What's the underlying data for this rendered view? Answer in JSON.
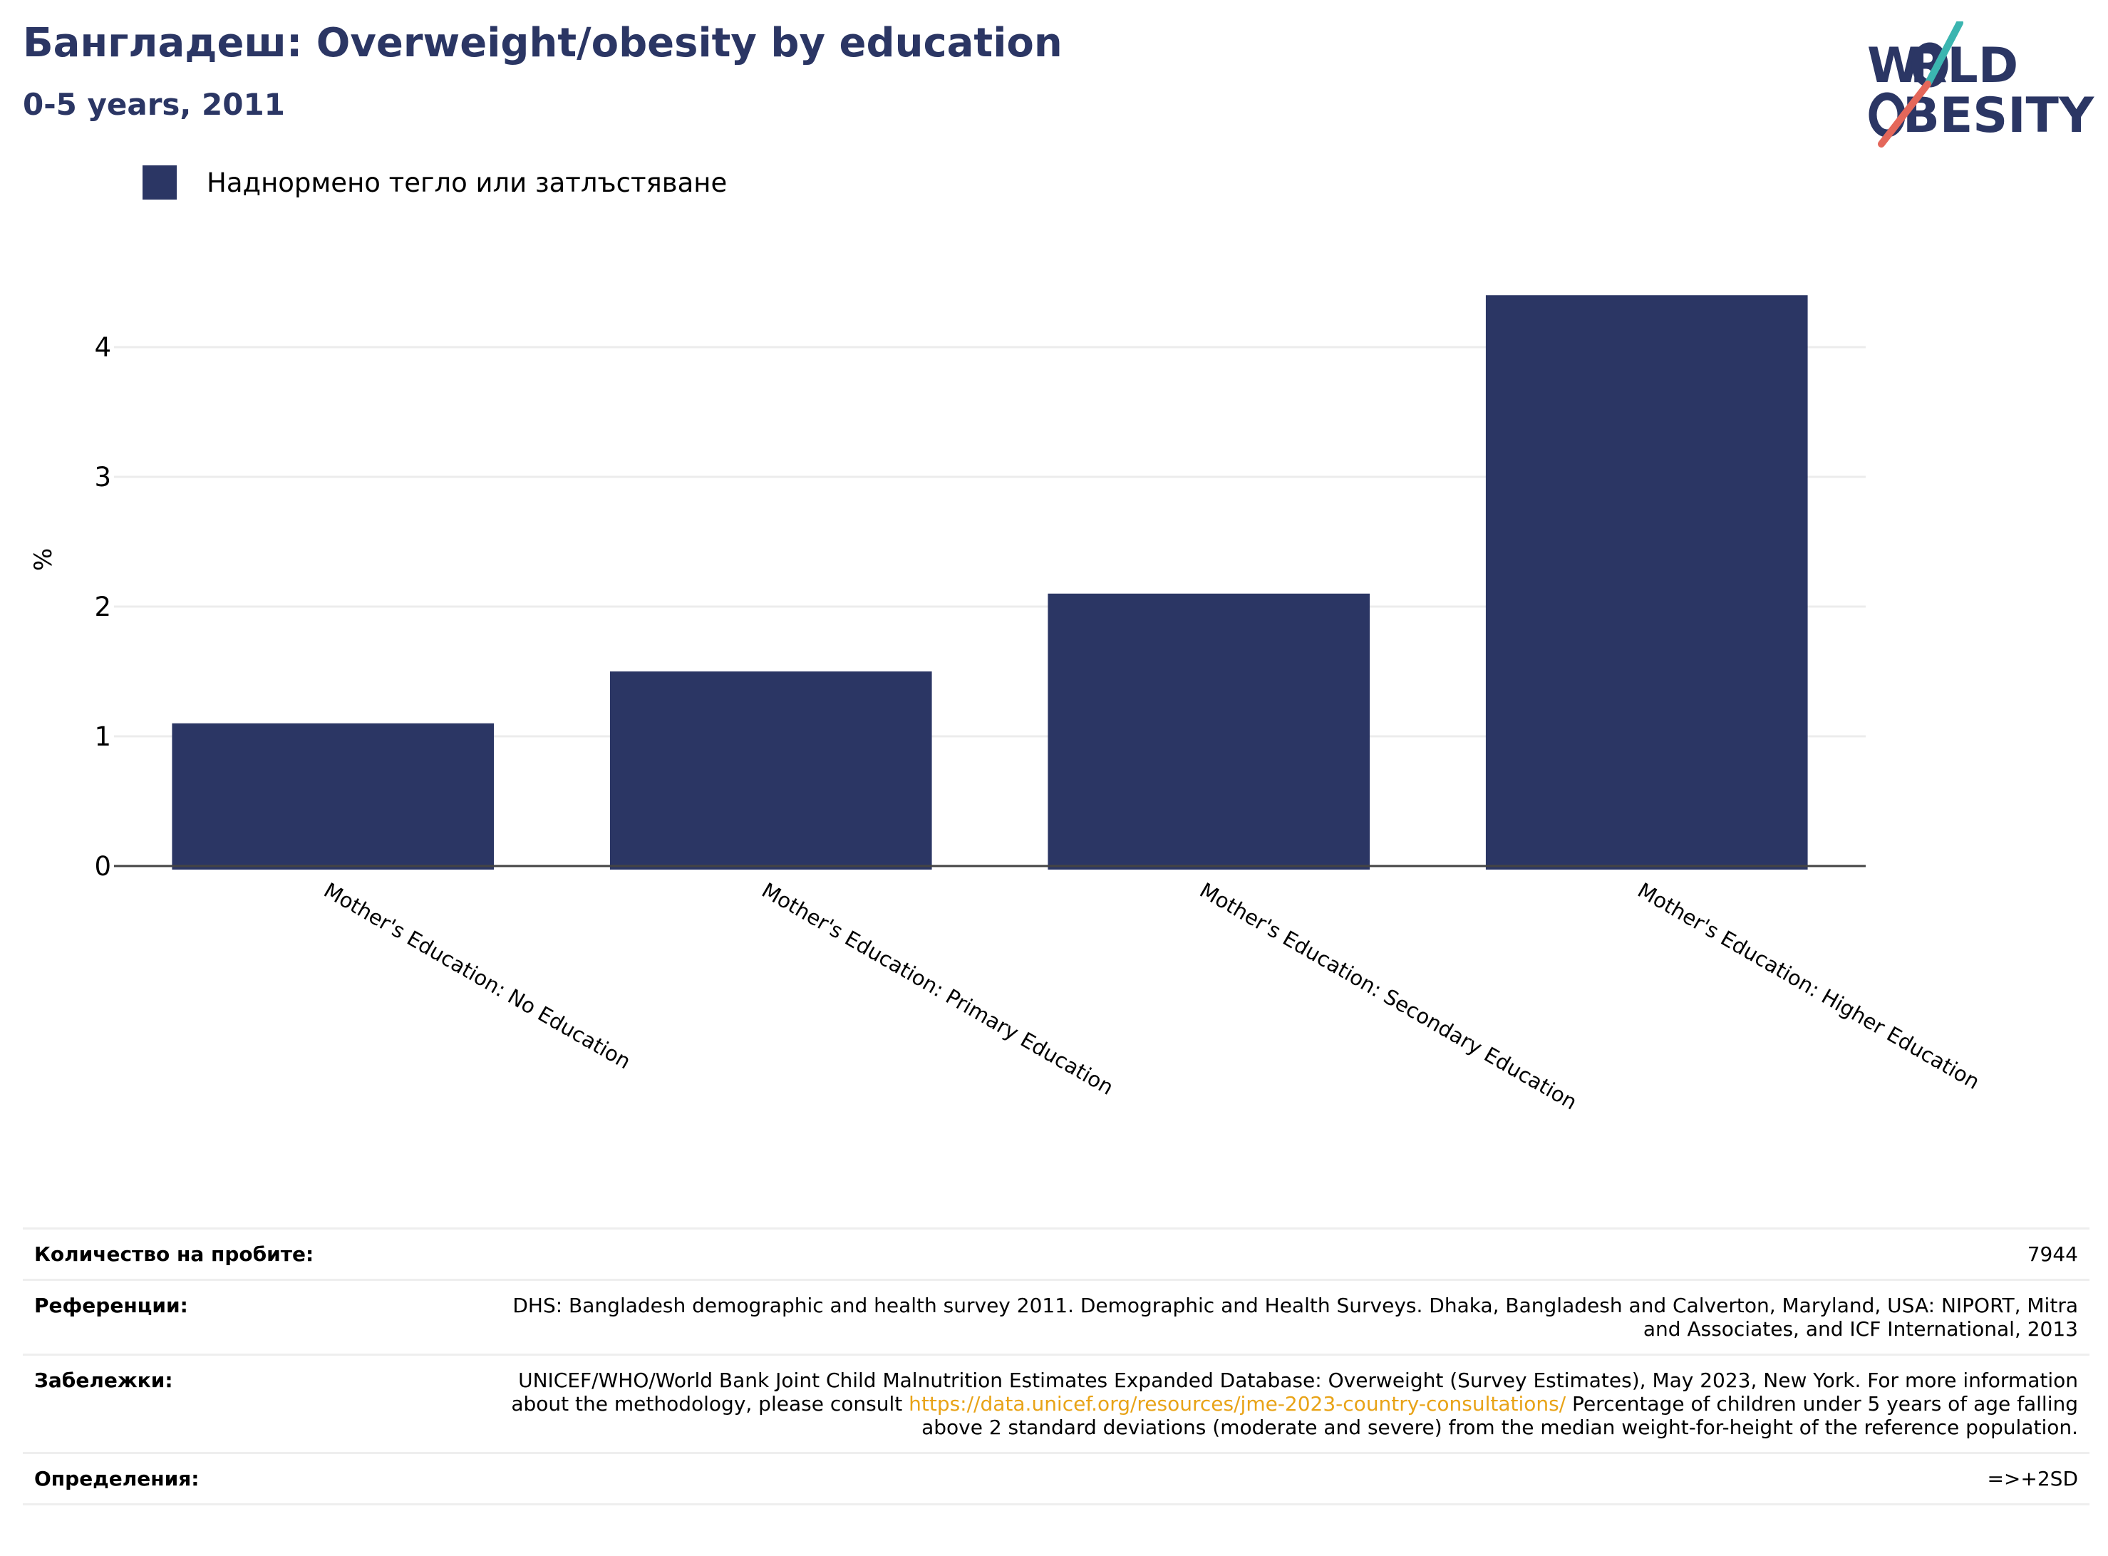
{
  "header": {
    "title": "Бангладеш: Overweight/obesity by education",
    "subtitle": "0-5 years, 2011",
    "logo_text": "WORLD OBESITY"
  },
  "legend": {
    "label": "Наднормено тегло или затлъстяване",
    "color": "#2b3664"
  },
  "chart_data": {
    "type": "bar",
    "categories": [
      "Mother's Education: No Education",
      "Mother's Education: Primary Education",
      "Mother's Education: Secondary Education",
      "Mother's Education: Higher Education"
    ],
    "series": [
      {
        "name": "Наднормено тегло или затлъстяване",
        "values": [
          1.1,
          1.5,
          2.1,
          4.4
        ],
        "color": "#2b3664"
      }
    ],
    "ylabel": "%",
    "yticks": [
      0,
      1,
      2,
      3,
      4
    ],
    "ylim": [
      0,
      4.6
    ],
    "grid": true
  },
  "meta": {
    "sample_label": "Количество на пробите:",
    "sample_value": "7944",
    "references_label": "Референции:",
    "references_value": "DHS: Bangladesh demographic and health survey 2011. Demographic and Health Surveys. Dhaka, Bangladesh and Calverton, Maryland, USA: NIPORT, Mitra and Associates, and ICF International, 2013",
    "notes_label": "Забележки:",
    "notes_prefix": "UNICEF/WHO/World Bank Joint Child Malnutrition Estimates Expanded Database: Overweight (Survey Estimates), May 2023, New York. For more information about the methodology, please consult ",
    "notes_link": "https://data.unicef.org/resources/jme-2023-country-consultations/",
    "notes_suffix": " Percentage of children under 5 years of age falling above 2 standard deviations (moderate and severe) from the median weight-for-height of the reference population.",
    "definitions_label": "Определения:",
    "definitions_value": "=>+2SD"
  }
}
